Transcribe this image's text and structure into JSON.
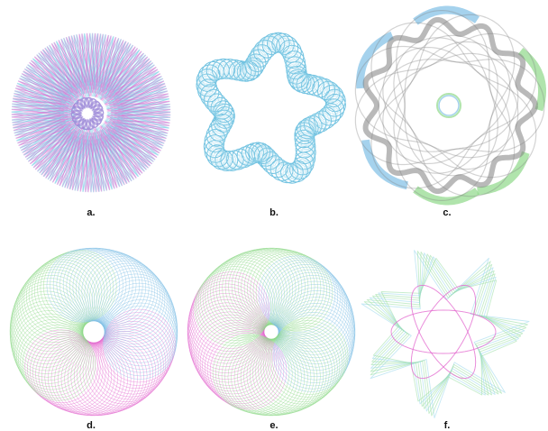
{
  "figure": {
    "panels": [
      {
        "id": "a",
        "label": "a.",
        "pattern": "star-spirograph",
        "colors": [
          "#7dcfe6",
          "#e36bd0",
          "#9a86d8"
        ]
      },
      {
        "id": "b",
        "label": "b.",
        "pattern": "looped-pentagon-spirograph",
        "colors": [
          "#5bb9dc",
          "#9fd8ec"
        ]
      },
      {
        "id": "c",
        "label": "c.",
        "pattern": "scalloped-ring-spirograph",
        "colors": [
          "#808080",
          "#7fbfe6",
          "#8ed889"
        ]
      },
      {
        "id": "d",
        "label": "d.",
        "pattern": "dense-circular-spirograph",
        "colors": [
          "#e36bd0",
          "#8ed889",
          "#7fbfe6"
        ]
      },
      {
        "id": "e",
        "label": "e.",
        "pattern": "dense-circular-spirograph",
        "colors": [
          "#e36bd0",
          "#8ed889",
          "#7fbfe6"
        ]
      },
      {
        "id": "f",
        "label": "f.",
        "pattern": "six-point-star-spirograph",
        "colors": [
          "#9fe0a8",
          "#e36bd0",
          "#9fd8ec"
        ]
      }
    ]
  }
}
